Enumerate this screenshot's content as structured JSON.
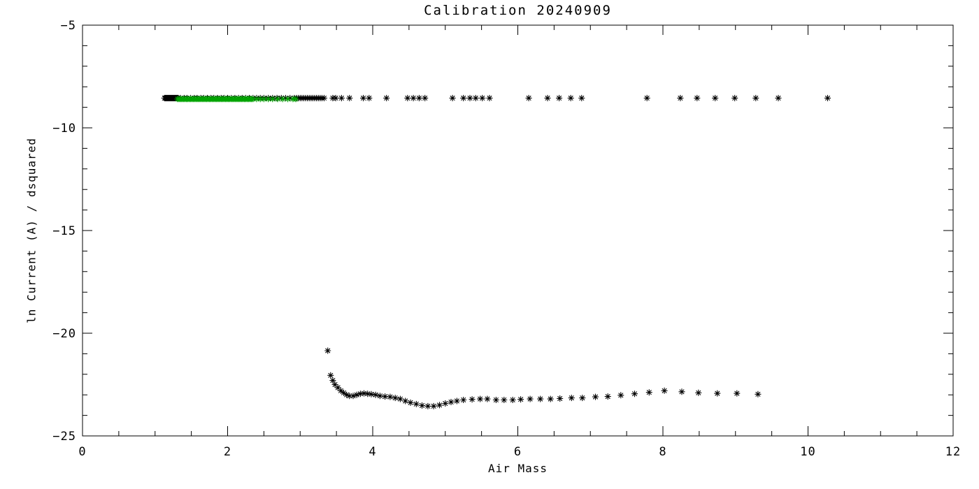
{
  "chart_data": {
    "type": "scatter",
    "title": "Calibration 20240909",
    "xlabel": "Air Mass",
    "ylabel": "ln Current (A) / dsquared",
    "xlim": [
      0,
      12
    ],
    "ylim": [
      -25,
      -5
    ],
    "grid": false,
    "legend": "none",
    "marker": "asterisk",
    "axis_color": "#000000",
    "x_major_ticks": [
      0,
      2,
      4,
      6,
      8,
      10,
      12
    ],
    "x_tick_labels": [
      "0",
      "2",
      "4",
      "6",
      "8",
      "10",
      "12"
    ],
    "x_minor_step": 0.5,
    "y_major_ticks": [
      -25,
      -20,
      -15,
      -10,
      -5
    ],
    "y_tick_labels": [
      "−25",
      "−20",
      "−15",
      "−10",
      "−5"
    ],
    "y_minor_step": 1,
    "series": [
      {
        "name": "upper-band-black",
        "color": "#000000",
        "y": -8.55,
        "x": [
          1.13,
          1.14,
          1.15,
          1.16,
          1.17,
          1.18,
          1.19,
          1.2,
          1.21,
          1.22,
          1.23,
          1.24,
          1.25,
          1.26,
          1.27,
          1.28,
          1.29,
          1.3,
          1.31,
          1.32,
          1.35,
          1.4,
          1.44,
          1.49,
          1.54,
          1.58,
          1.63,
          1.67,
          1.72,
          1.77,
          1.81,
          1.86,
          1.91,
          1.95,
          2.0,
          2.05,
          2.1,
          2.15,
          2.2,
          2.25,
          2.3,
          2.35,
          2.4,
          2.45,
          2.5,
          2.56,
          2.62,
          2.68,
          2.74,
          2.8,
          2.86,
          2.92,
          2.95,
          2.975,
          3.0,
          3.025,
          3.05,
          3.075,
          3.1,
          3.125,
          3.15,
          3.175,
          3.2,
          3.225,
          3.25,
          3.275,
          3.3,
          3.33,
          3.45,
          3.49,
          3.57,
          3.68,
          3.87,
          3.95,
          4.19,
          4.48,
          4.56,
          4.64,
          4.72,
          5.1,
          5.25,
          5.34,
          5.42,
          5.51,
          5.61,
          6.15,
          6.41,
          6.57,
          6.73,
          6.88,
          7.78,
          8.24,
          8.47,
          8.72,
          8.99,
          9.28,
          9.59,
          10.27
        ]
      },
      {
        "name": "upper-band-green",
        "color": "#00a400",
        "y": -8.6,
        "x": [
          1.31,
          1.33,
          1.35,
          1.37,
          1.39,
          1.41,
          1.43,
          1.45,
          1.47,
          1.49,
          1.51,
          1.53,
          1.55,
          1.57,
          1.59,
          1.61,
          1.63,
          1.65,
          1.67,
          1.69,
          1.71,
          1.73,
          1.75,
          1.77,
          1.79,
          1.81,
          1.83,
          1.85,
          1.87,
          1.89,
          1.91,
          1.93,
          1.95,
          1.97,
          1.99,
          2.01,
          2.03,
          2.05,
          2.07,
          2.09,
          2.11,
          2.13,
          2.15,
          2.17,
          2.19,
          2.21,
          2.23,
          2.25,
          2.27,
          2.29,
          2.31,
          2.33,
          2.35,
          2.4,
          2.45,
          2.5,
          2.56,
          2.62,
          2.69,
          2.76,
          2.83,
          2.9,
          2.94
        ]
      },
      {
        "name": "lower-curve-black",
        "color": "#000000",
        "points": [
          [
            3.38,
            -20.85
          ],
          [
            3.42,
            -22.05
          ],
          [
            3.45,
            -22.3
          ],
          [
            3.48,
            -22.5
          ],
          [
            3.52,
            -22.65
          ],
          [
            3.56,
            -22.8
          ],
          [
            3.6,
            -22.9
          ],
          [
            3.64,
            -23.0
          ],
          [
            3.68,
            -23.05
          ],
          [
            3.73,
            -23.05
          ],
          [
            3.78,
            -23.0
          ],
          [
            3.83,
            -22.95
          ],
          [
            3.88,
            -22.93
          ],
          [
            3.93,
            -22.95
          ],
          [
            3.98,
            -22.97
          ],
          [
            4.04,
            -23.0
          ],
          [
            4.1,
            -23.05
          ],
          [
            4.17,
            -23.08
          ],
          [
            4.24,
            -23.1
          ],
          [
            4.31,
            -23.15
          ],
          [
            4.38,
            -23.2
          ],
          [
            4.45,
            -23.3
          ],
          [
            4.52,
            -23.38
          ],
          [
            4.6,
            -23.45
          ],
          [
            4.68,
            -23.52
          ],
          [
            4.76,
            -23.55
          ],
          [
            4.84,
            -23.55
          ],
          [
            4.92,
            -23.5
          ],
          [
            5.0,
            -23.42
          ],
          [
            5.08,
            -23.35
          ],
          [
            5.16,
            -23.3
          ],
          [
            5.25,
            -23.25
          ],
          [
            5.37,
            -23.22
          ],
          [
            5.48,
            -23.2
          ],
          [
            5.58,
            -23.2
          ],
          [
            5.7,
            -23.25
          ],
          [
            5.81,
            -23.25
          ],
          [
            5.93,
            -23.25
          ],
          [
            6.04,
            -23.22
          ],
          [
            6.17,
            -23.2
          ],
          [
            6.31,
            -23.2
          ],
          [
            6.45,
            -23.2
          ],
          [
            6.58,
            -23.18
          ],
          [
            6.74,
            -23.15
          ],
          [
            6.89,
            -23.15
          ],
          [
            7.07,
            -23.1
          ],
          [
            7.24,
            -23.08
          ],
          [
            7.42,
            -23.02
          ],
          [
            7.61,
            -22.95
          ],
          [
            7.81,
            -22.88
          ],
          [
            8.02,
            -22.8
          ],
          [
            8.26,
            -22.85
          ],
          [
            8.49,
            -22.9
          ],
          [
            8.75,
            -22.93
          ],
          [
            9.02,
            -22.93
          ],
          [
            9.31,
            -22.97
          ]
        ]
      }
    ]
  }
}
